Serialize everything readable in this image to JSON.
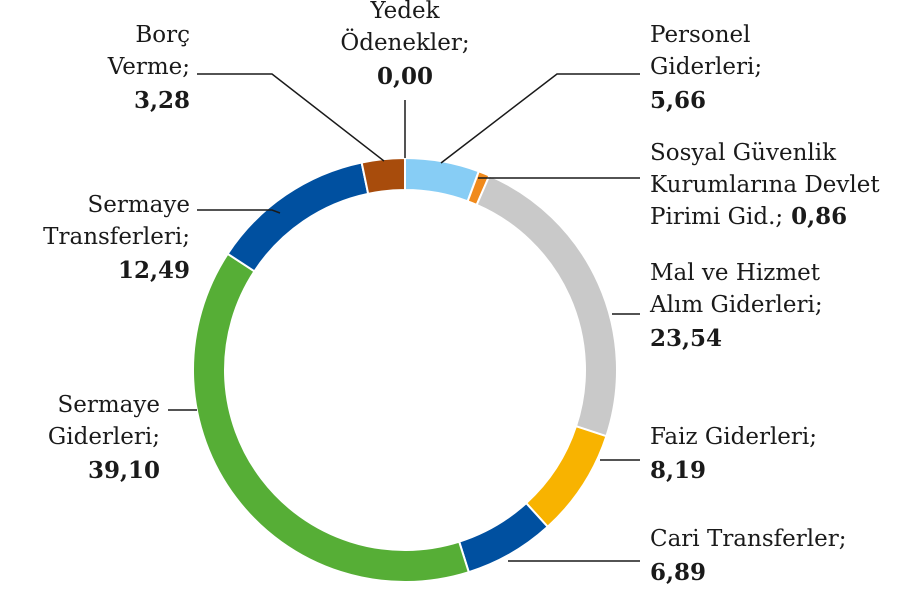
{
  "chart_data": {
    "type": "donut",
    "categories": [
      [
        "Personel",
        "Giderleri;"
      ],
      [
        "Sosyal Güvenlik",
        "Kurumlarına Devlet",
        "Pirimi Gid.;"
      ],
      [
        "Mal ve Hizmet",
        "Alım Giderleri;"
      ],
      [
        "Faiz Giderleri;"
      ],
      [
        "Cari Transferler;"
      ],
      [
        "Sermaye",
        "Giderleri;"
      ],
      [
        "Sermaye",
        "Transferleri;"
      ],
      [
        "Borç",
        "Verme;"
      ],
      [
        "Yedek",
        "Ödenekler;"
      ]
    ],
    "values": [
      5.66,
      0.86,
      23.54,
      8.19,
      6.89,
      39.1,
      12.49,
      3.28,
      0.0
    ],
    "value_labels": [
      "5,66",
      "0,86",
      "23,54",
      "8,19",
      "6,89",
      "39,10",
      "12,49",
      "3,28",
      "0,00"
    ],
    "colors": [
      "#87cdf5",
      "#f08a1c",
      "#c9c9c9",
      "#f8b300",
      "#0050a0",
      "#56ae36",
      "#0050a0",
      "#a84c0c",
      "#999999"
    ]
  }
}
